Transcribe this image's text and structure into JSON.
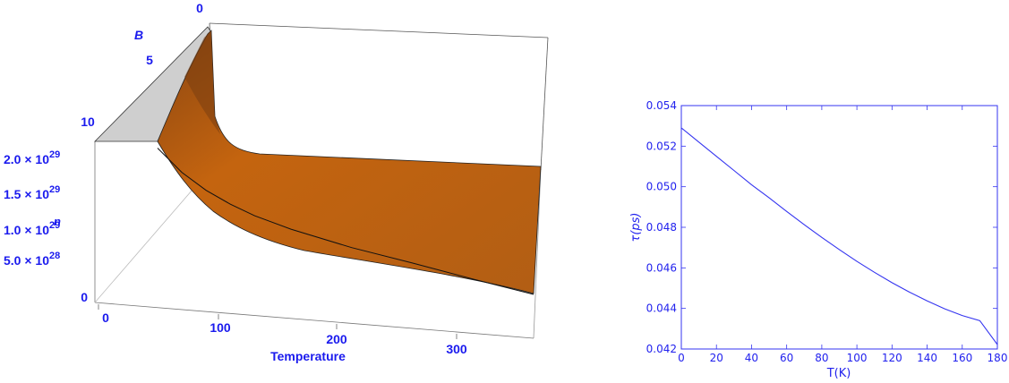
{
  "colors": {
    "axis_text": "#1a1aee",
    "surface_light": "#c86a16",
    "surface_dark": "#8c4710",
    "wall_gray": "#cfcfcf",
    "line_blue": "#3434f0"
  },
  "chart_data": [
    {
      "type": "surface3d",
      "title": "",
      "xlabel": "Temperature",
      "ylabel": "B",
      "zlabel": "n",
      "x_ticks": [
        "0",
        "100",
        "200",
        "300"
      ],
      "y_ticks": [
        "0",
        "5",
        "10"
      ],
      "z_ticks": [
        {
          "mant": "0",
          "exp": ""
        },
        {
          "mant": "5.0 × 10",
          "exp": "28"
        },
        {
          "mant": "1.0 × 10",
          "exp": "29"
        },
        {
          "mant": "1.5 × 10",
          "exp": "29"
        },
        {
          "mant": "2.0 × 10",
          "exp": "29"
        }
      ],
      "xlim": [
        0,
        350
      ],
      "ylim": [
        0,
        12
      ],
      "zlim": [
        0,
        2.3e+29
      ],
      "front_edge": {
        "x": [
          40,
          60,
          80,
          100,
          120,
          150,
          200,
          250,
          300,
          350
        ],
        "z": [
          2e+29,
          1.72e+29,
          1.52e+29,
          1.37e+29,
          1.25e+29,
          1.12e+29,
          9.5e+28,
          8.2e+28,
          6.8e+28,
          5.5e+28
        ]
      }
    },
    {
      "type": "line",
      "title": "",
      "xlabel": "T(K)",
      "ylabel": "τ(ps)",
      "xlim": [
        0,
        180
      ],
      "ylim": [
        0.042,
        0.054
      ],
      "x_ticks": [
        "0",
        "20",
        "40",
        "60",
        "80",
        "100",
        "120",
        "140",
        "160",
        "180"
      ],
      "y_ticks": [
        "0.042",
        "0.044",
        "0.046",
        "0.048",
        "0.050",
        "0.052",
        "0.054"
      ],
      "grid": false,
      "series": [
        {
          "x": [
            0,
            10,
            20,
            30,
            40,
            50,
            60,
            70,
            80,
            90,
            100,
            110,
            120,
            130,
            140,
            150,
            160,
            170,
            180
          ],
          "y": [
            0.0529,
            0.0522,
            0.0515,
            0.0508,
            0.0501,
            0.04945,
            0.04878,
            0.04813,
            0.0475,
            0.0469,
            0.04632,
            0.04578,
            0.04527,
            0.0448,
            0.04437,
            0.04398,
            0.04365,
            0.0434,
            0.04222
          ]
        }
      ]
    }
  ]
}
